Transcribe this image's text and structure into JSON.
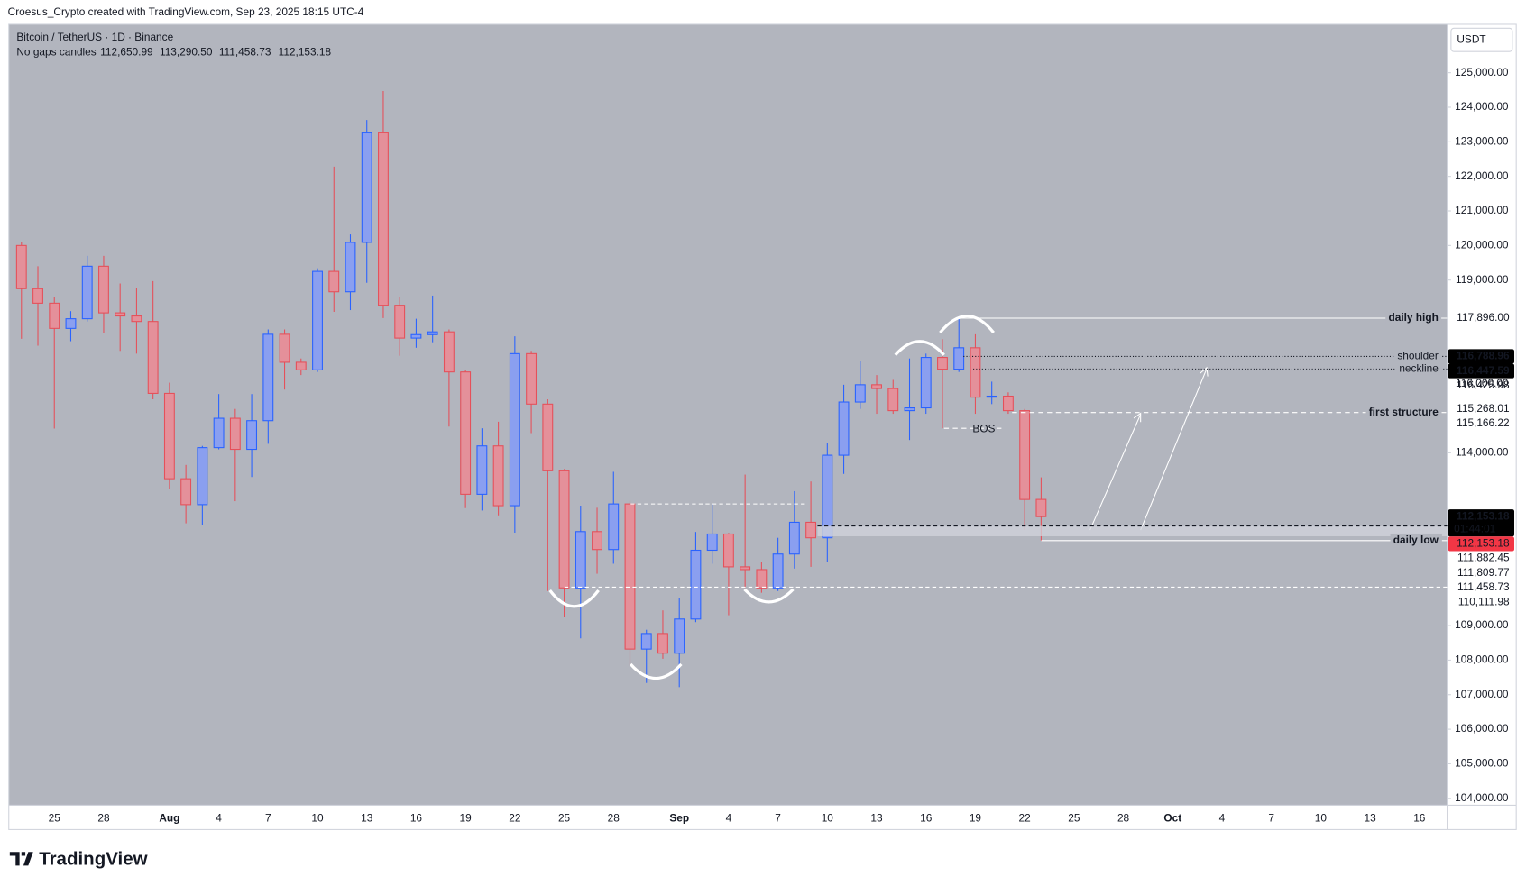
{
  "chart_data": {
    "type": "candlestick",
    "header": "Croesus_Crypto created with TradingView.com, Sep 23, 2025 18:15 UTC-4",
    "symbol": "Bitcoin / TetherUS · 1D · Binance",
    "candle_style": "No gaps candles",
    "ohlc_labels": [
      "112,650.99",
      "113,290.50",
      "111,458.73",
      "112,153.18"
    ],
    "currency": "USDT",
    "brand": "TradingView",
    "up_color": "#2962ff",
    "down_color": "#e5505a",
    "categories": [
      null,
      null,
      "25",
      null,
      null,
      "28",
      null,
      null,
      null,
      "Aug",
      null,
      null,
      "4",
      null,
      null,
      "7",
      null,
      null,
      "10",
      null,
      null,
      "13",
      null,
      null,
      "16",
      null,
      null,
      "19",
      null,
      null,
      "22",
      null,
      null,
      "25",
      null,
      null,
      "28",
      null,
      null,
      null,
      "Sep",
      null,
      null,
      "4",
      null,
      null,
      "7",
      null,
      null,
      "10",
      null,
      null,
      "13",
      null,
      null,
      "16",
      null,
      null,
      "19",
      null,
      null,
      "22",
      null,
      null,
      "25",
      null,
      null,
      "28",
      null,
      null,
      "Oct",
      null,
      null,
      "4",
      null,
      null,
      "7",
      null,
      null,
      "10",
      null,
      null,
      "13",
      null,
      null,
      "16",
      null
    ],
    "open": [
      120000,
      118750,
      118330,
      117600,
      117880,
      119400,
      118050,
      117960,
      117800,
      115720,
      113250,
      112500,
      114150,
      115000,
      114100,
      114930,
      117430,
      116620,
      116400,
      119250,
      118660,
      120090,
      123260,
      118270,
      117320,
      117420,
      117500,
      116340,
      112800,
      114200,
      112470,
      116870,
      115410,
      113480,
      110090,
      111720,
      111200,
      112520,
      108320,
      108770,
      108200,
      109190,
      111180,
      111650,
      110700,
      110620,
      110090,
      111070,
      111990,
      111540,
      113930,
      115470,
      115970,
      115860,
      115220,
      115300,
      116760,
      116420,
      117040,
      115610,
      115640,
      115220,
      112650.99,
      null,
      null,
      null,
      null,
      null,
      null,
      null,
      null,
      null,
      null,
      null,
      null,
      null,
      null,
      null,
      null,
      null,
      null,
      null,
      null,
      null,
      null,
      null,
      null
    ],
    "high": [
      120100,
      119400,
      118500,
      118100,
      119700,
      119700,
      118900,
      118780,
      118970,
      116030,
      113650,
      114200,
      115700,
      115270,
      115700,
      117570,
      117570,
      116730,
      119340,
      122280,
      120320,
      123630,
      124470,
      118500,
      117880,
      118550,
      117570,
      116400,
      114710,
      114900,
      117370,
      116950,
      115550,
      113530,
      112470,
      112410,
      113450,
      112610,
      108880,
      109440,
      109800,
      111710,
      112520,
      111680,
      113370,
      110840,
      111540,
      112890,
      113170,
      114290,
      115970,
      116670,
      116250,
      116110,
      116730,
      116870,
      117290,
      117896,
      117430,
      116060,
      115750,
      115270,
      113290.5,
      null,
      null,
      null,
      null,
      null,
      null,
      null,
      null,
      null,
      null,
      null,
      null,
      null,
      null,
      null,
      null,
      null,
      null,
      null,
      null,
      null,
      null,
      null,
      null
    ],
    "low": [
      117300,
      117100,
      114700,
      117230,
      117800,
      117460,
      116950,
      116870,
      115550,
      112950,
      111960,
      111900,
      114100,
      112600,
      113300,
      114260,
      115830,
      116250,
      116340,
      118080,
      118130,
      118920,
      117900,
      116810,
      117040,
      117200,
      114760,
      112400,
      112330,
      112190,
      111690,
      114570,
      110000,
      109240,
      108630,
      110500,
      110790,
      107840,
      107340,
      108040,
      107220,
      109100,
      110790,
      109300,
      110090,
      109950,
      110000,
      110650,
      110700,
      110840,
      113390,
      115270,
      115130,
      115130,
      114370,
      115130,
      114710,
      116340,
      115130,
      115410,
      115130,
      111770,
      111458.73,
      null,
      null,
      null,
      null,
      null,
      null,
      null,
      null,
      null,
      null,
      null,
      null,
      null,
      null,
      null,
      null,
      null,
      null,
      null,
      null,
      null,
      null,
      null,
      null
    ],
    "close": [
      118750,
      118330,
      117600,
      117880,
      119400,
      118050,
      117960,
      117800,
      115720,
      113250,
      112500,
      114150,
      115000,
      114100,
      114930,
      117430,
      116620,
      116400,
      119250,
      118660,
      120090,
      123260,
      118270,
      117320,
      117420,
      117500,
      116340,
      112800,
      114200,
      112470,
      116870,
      115410,
      113480,
      110090,
      111720,
      111200,
      112520,
      108320,
      108770,
      108200,
      109190,
      111180,
      111650,
      110700,
      110620,
      110090,
      111070,
      111990,
      111540,
      113930,
      115470,
      115970,
      115860,
      115220,
      115300,
      116760,
      116420,
      117040,
      115610,
      115640,
      115220,
      112650,
      112153.18,
      null,
      null,
      null,
      null,
      null,
      null,
      null,
      null,
      null,
      null,
      null,
      null,
      null,
      null,
      null,
      null,
      null,
      null,
      null,
      null,
      null,
      null,
      null,
      null
    ],
    "ylim": [
      103800,
      126400
    ],
    "yticks": [
      {
        "value": 104000,
        "label": "104,000.00"
      },
      {
        "value": 105000,
        "label": "105,000.00"
      },
      {
        "value": 106000,
        "label": "106,000.00"
      },
      {
        "value": 107000,
        "label": "107,000.00"
      },
      {
        "value": 108000,
        "label": "108,000.00"
      },
      {
        "value": 109000,
        "label": "109,000.00"
      },
      {
        "value": 114000,
        "label": "114,000.00"
      },
      {
        "value": 116000,
        "label": "116,000.00"
      },
      {
        "value": 119000,
        "label": "119,000.00"
      },
      {
        "value": 120000,
        "label": "120,000.00"
      },
      {
        "value": 121000,
        "label": "121,000.00"
      },
      {
        "value": 122000,
        "label": "122,000.00"
      },
      {
        "value": 123000,
        "label": "123,000.00"
      },
      {
        "value": 124000,
        "label": "124,000.00"
      },
      {
        "value": 125000,
        "label": "125,000.00"
      }
    ],
    "levels": [
      {
        "label": "daily high",
        "value": 117896,
        "color": "#ffffff",
        "line": "solid"
      },
      {
        "label": "shoulder",
        "value": 116788.96,
        "color": "#131722",
        "line": "dotted"
      },
      {
        "label": "neckline",
        "value": 116425.98,
        "color": "#131722",
        "line": "dotted"
      },
      {
        "label": "first structure",
        "value": 115166.22,
        "color": "#ffffff",
        "line": "dashed"
      },
      {
        "label": "BOS",
        "value": 114710,
        "color": "#131722",
        "line": "dashed"
      },
      {
        "label": "daily low",
        "value": 111458.73,
        "color": "#ffffff",
        "line": "solid"
      }
    ],
    "guides": [
      {
        "value": 112520,
        "color": "#ffffff"
      },
      {
        "value": 111882.45,
        "color": "#131722"
      },
      {
        "value": 110111.98,
        "color": "#ffffff"
      }
    ],
    "zone": [
      111809.77,
      111882.45
    ],
    "price_tags": [
      {
        "value": 117896,
        "label": "117,896.00",
        "style": "light"
      },
      {
        "value": 116788.96,
        "label": "116,788.96",
        "style": "dark"
      },
      {
        "value": 116447.59,
        "label": "116,447.59",
        "style": "dark"
      },
      {
        "value": 116425.98,
        "label": "116,425.98",
        "style": "light"
      },
      {
        "value": 115268.01,
        "label": "115,268.01",
        "style": "light"
      },
      {
        "value": 115166.22,
        "label": "115,166.22",
        "style": "light"
      },
      {
        "value": 112153.18,
        "label": "112,153.18",
        "style": "dark",
        "countdown": "01:44:01"
      },
      {
        "value": 112153.18,
        "label": "112,153.18",
        "style": "red"
      },
      {
        "value": 111882.45,
        "label": "111,882.45",
        "style": "light"
      },
      {
        "value": 111809.77,
        "label": "111,809.77",
        "style": "light"
      },
      {
        "value": 111458.73,
        "label": "111,458.73",
        "style": "light"
      },
      {
        "value": 110111.98,
        "label": "110,111.98",
        "style": "light"
      }
    ]
  }
}
